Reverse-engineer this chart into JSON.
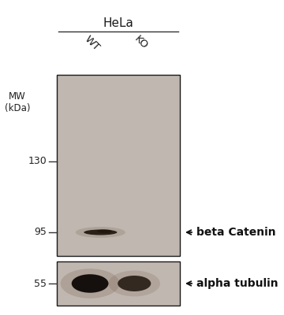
{
  "bg_color": "#ffffff",
  "gel_bg_color": "#c0b8b0",
  "gel_border_color": "#1a1a1a",
  "title": "HeLa",
  "title_fontsize": 11,
  "lane_labels": [
    "WT",
    "KO"
  ],
  "lane_label_fontsize": 9.5,
  "mw_label": "MW\n(kDa)",
  "mw_fontsize": 8.5,
  "mw_markers": [
    130,
    95,
    55
  ],
  "mw_marker_fontsize": 9,
  "annotation_beta": "beta Catenin",
  "annotation_tubulin": "alpha tubulin",
  "annotation_fontsize": 10,
  "gel_bg_lighter": "#ccc5bc",
  "gel_bg_darker": "#b8b0a8",
  "band_dark": "#0d0805",
  "band_mid": "#2a1a10"
}
